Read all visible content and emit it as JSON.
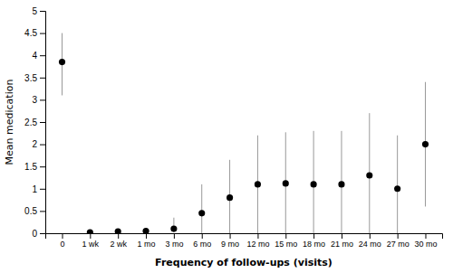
{
  "chart_data": {
    "type": "errorbar",
    "categories": [
      "0",
      "1 wk",
      "2 wk",
      "1 mo",
      "3 mo",
      "6 mo",
      "9 mo",
      "12 mo",
      "15 mo",
      "18 mo",
      "21 mo",
      "24 mo",
      "27 mo",
      "30 mo"
    ],
    "values": [
      3.85,
      0.02,
      0.04,
      0.05,
      0.1,
      0.45,
      0.8,
      1.1,
      1.12,
      1.1,
      1.1,
      1.3,
      1.0,
      2.0
    ],
    "err_upper": [
      0.65,
      0.0,
      0.0,
      0.0,
      0.25,
      0.65,
      0.85,
      1.1,
      1.15,
      1.2,
      1.2,
      1.4,
      1.2,
      1.4
    ],
    "err_lower": [
      0.75,
      0.0,
      0.0,
      0.0,
      0.0,
      0.45,
      0.8,
      1.1,
      1.12,
      1.1,
      1.1,
      1.3,
      1.0,
      1.4
    ],
    "y_label": "Mean medication",
    "x_label": "Frequency of follow-ups (visits)",
    "ylim": [
      0,
      5
    ],
    "yticks": [
      0,
      0.5,
      1,
      1.5,
      2,
      2.5,
      3,
      3.5,
      4,
      4.5,
      5
    ],
    "color": "#000000",
    "marker": "circle",
    "grid": false
  }
}
